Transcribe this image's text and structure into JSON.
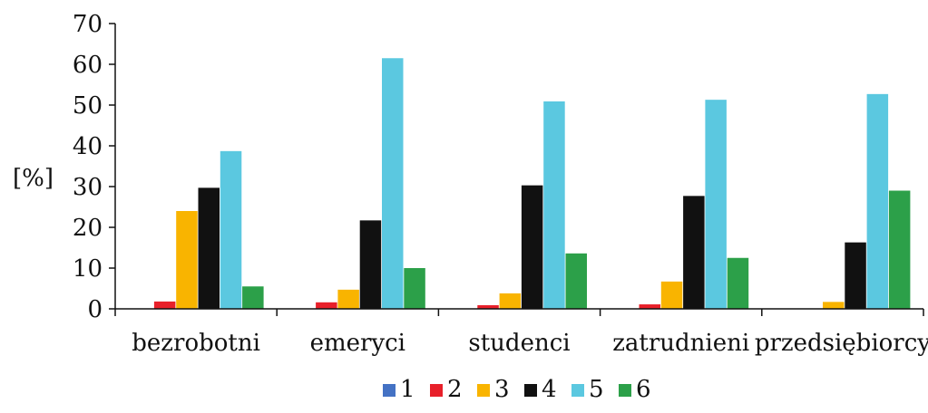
{
  "chart_data": {
    "type": "bar",
    "ylabel": "[%]",
    "xlabel": "",
    "ylim": [
      0,
      70
    ],
    "yticks": [
      0,
      10,
      20,
      30,
      40,
      50,
      60,
      70
    ],
    "grid": false,
    "legend_position": "bottom",
    "categories": [
      "bezrobotni",
      "emeryci",
      "studenci",
      "zatrudnieni",
      "przedsiębiorcy"
    ],
    "series": [
      {
        "name": "1",
        "color": "#4472c4",
        "values": [
          0,
          0,
          0,
          0,
          0
        ]
      },
      {
        "name": "2",
        "color": "#e8202a",
        "values": [
          1.8,
          1.6,
          0.9,
          1.1,
          0
        ]
      },
      {
        "name": "3",
        "color": "#f9b400",
        "values": [
          24,
          4.7,
          3.8,
          6.7,
          1.7
        ]
      },
      {
        "name": "4",
        "color": "#111111",
        "values": [
          29.7,
          21.7,
          30.3,
          27.7,
          16.3
        ]
      },
      {
        "name": "5",
        "color": "#5bc8e0",
        "values": [
          38.7,
          61.5,
          50.9,
          51.3,
          52.7
        ]
      },
      {
        "name": "6",
        "color": "#2ca049",
        "values": [
          5.5,
          10,
          13.6,
          12.5,
          29
        ]
      }
    ]
  }
}
